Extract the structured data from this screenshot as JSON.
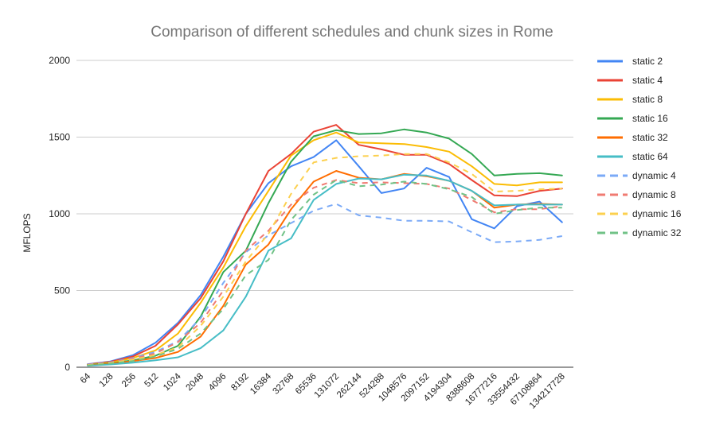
{
  "chart_data": {
    "type": "line",
    "title": "Comparison of different schedules and chunk sizes in Rome",
    "xlabel": "",
    "ylabel": "MFLOPS",
    "ylim": [
      0,
      2000
    ],
    "yticks": [
      0,
      500,
      1000,
      1500,
      2000
    ],
    "grid": true,
    "legend_position": "right",
    "categories": [
      "64",
      "128",
      "256",
      "512",
      "1024",
      "2048",
      "4096",
      "8192",
      "16384",
      "32768",
      "65536",
      "131072",
      "262144",
      "524288",
      "1048576",
      "2097152",
      "4194304",
      "8388608",
      "16777216",
      "33554432",
      "67108864",
      "134217728"
    ],
    "series": [
      {
        "name": "static 2",
        "color": "#4285f4",
        "dashed": false,
        "values": [
          20,
          38,
          78,
          160,
          290,
          470,
          720,
          1000,
          1200,
          1310,
          1370,
          1480,
          1310,
          1135,
          1165,
          1300,
          1240,
          965,
          905,
          1050,
          1080,
          945
        ]
      },
      {
        "name": "static 4",
        "color": "#ea4335",
        "dashed": false,
        "values": [
          18,
          35,
          70,
          140,
          280,
          450,
          690,
          1000,
          1280,
          1390,
          1535,
          1580,
          1450,
          1420,
          1385,
          1385,
          1325,
          1220,
          1120,
          1115,
          1150,
          1165
        ]
      },
      {
        "name": "static 8",
        "color": "#fbbc04",
        "dashed": false,
        "values": [
          16,
          30,
          60,
          110,
          220,
          420,
          650,
          920,
          1150,
          1380,
          1480,
          1530,
          1465,
          1460,
          1455,
          1435,
          1405,
          1310,
          1195,
          1185,
          1205,
          1205
        ]
      },
      {
        "name": "static 16",
        "color": "#34a853",
        "dashed": false,
        "values": [
          14,
          25,
          45,
          75,
          140,
          330,
          620,
          760,
          1070,
          1340,
          1505,
          1545,
          1520,
          1525,
          1550,
          1530,
          1490,
          1390,
          1250,
          1260,
          1265,
          1250
        ]
      },
      {
        "name": "static 32",
        "color": "#ff6d01",
        "dashed": false,
        "values": [
          12,
          22,
          40,
          60,
          100,
          200,
          400,
          670,
          800,
          1030,
          1210,
          1280,
          1235,
          1225,
          1260,
          1245,
          1215,
          1150,
          1040,
          1060,
          1065,
          1060
        ]
      },
      {
        "name": "static 64",
        "color": "#46bdc6",
        "dashed": false,
        "values": [
          10,
          18,
          30,
          45,
          65,
          125,
          240,
          460,
          760,
          840,
          1090,
          1195,
          1230,
          1225,
          1255,
          1250,
          1215,
          1150,
          1055,
          1060,
          1060,
          1060
        ]
      },
      {
        "name": "dynamic 4",
        "color": "#7baaf7",
        "dashed": true,
        "values": [
          18,
          32,
          60,
          100,
          170,
          320,
          550,
          750,
          860,
          940,
          1020,
          1065,
          990,
          975,
          955,
          955,
          950,
          880,
          815,
          820,
          830,
          855
        ]
      },
      {
        "name": "dynamic 8",
        "color": "#f07b72",
        "dashed": true,
        "values": [
          16,
          30,
          55,
          90,
          165,
          290,
          500,
          760,
          890,
          1060,
          1170,
          1220,
          1200,
          1205,
          1200,
          1195,
          1165,
          1090,
          1010,
          1030,
          1030,
          1050
        ]
      },
      {
        "name": "dynamic 16",
        "color": "#fcd04f",
        "dashed": true,
        "values": [
          14,
          28,
          50,
          80,
          130,
          270,
          460,
          690,
          870,
          1130,
          1335,
          1365,
          1375,
          1380,
          1390,
          1390,
          1335,
          1260,
          1145,
          1150,
          1160,
          1165
        ]
      },
      {
        "name": "dynamic 32",
        "color": "#71c287",
        "dashed": true,
        "values": [
          12,
          24,
          40,
          70,
          120,
          220,
          380,
          600,
          700,
          960,
          1125,
          1220,
          1180,
          1190,
          1210,
          1195,
          1160,
          1110,
          1000,
          1025,
          1040,
          1040
        ]
      }
    ]
  }
}
